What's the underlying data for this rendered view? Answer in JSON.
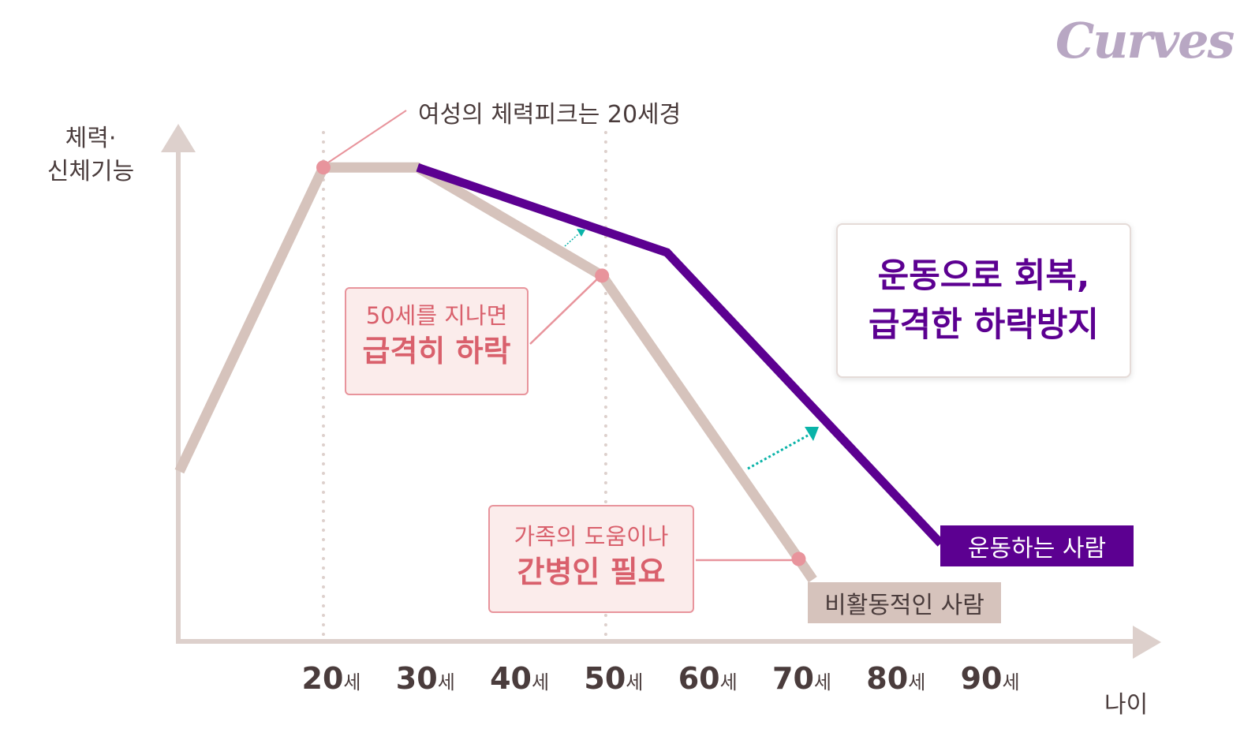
{
  "logo": "Curves",
  "colors": {
    "inactive": "#d6c3bc",
    "active": "#5c0091",
    "highlight": "#e8949c",
    "arrow": "#0ab3a8",
    "axis": "#ddd0cc"
  },
  "chart_data": {
    "type": "line",
    "title": "",
    "ylabel": [
      "체력·",
      "신체기능"
    ],
    "xlabel": "나이",
    "x_ticks": [
      {
        "num": "20",
        "unit": "세"
      },
      {
        "num": "30",
        "unit": "세"
      },
      {
        "num": "40",
        "unit": "세"
      },
      {
        "num": "50",
        "unit": "세"
      },
      {
        "num": "60",
        "unit": "세"
      },
      {
        "num": "70",
        "unit": "세"
      },
      {
        "num": "80",
        "unit": "세"
      },
      {
        "num": "90",
        "unit": "세"
      }
    ],
    "xlim": [
      5,
      95
    ],
    "ylim": [
      0,
      100
    ],
    "grid": false,
    "reference_lines_x": [
      20,
      50
    ],
    "series": [
      {
        "name": "비활동적인 사람",
        "points": [
          [
            4.7,
            33
          ],
          [
            20,
            92
          ],
          [
            30,
            92
          ],
          [
            49.6,
            71
          ],
          [
            70.5,
            16
          ],
          [
            72,
            12
          ]
        ]
      },
      {
        "name": "운동하는 사람",
        "points": [
          [
            30,
            92
          ],
          [
            56.5,
            75.5
          ],
          [
            85.6,
            19
          ]
        ]
      }
    ],
    "highlight_points": [
      [
        20,
        92
      ],
      [
        49.6,
        71
      ],
      [
        70.5,
        16
      ]
    ],
    "annotations": {
      "peak": "여성의 체력피크는 20세경",
      "decline": {
        "line1": "50세를 지나면",
        "line2": "급격히 하락"
      },
      "care": {
        "line1": "가족의 도움이나",
        "line2": "간병인 필요"
      },
      "message": {
        "line1": "운동으로 회복,",
        "line2": "급격한 하락방지"
      }
    }
  }
}
